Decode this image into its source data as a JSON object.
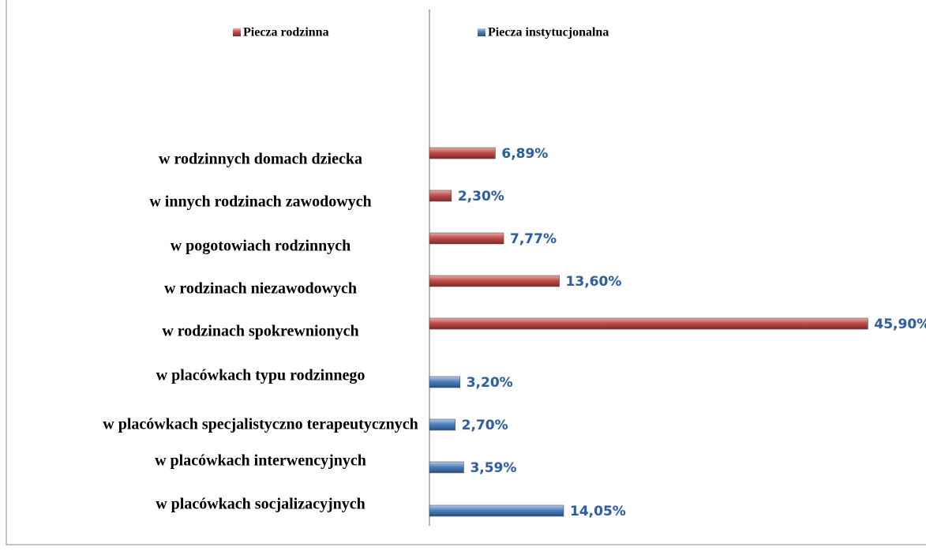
{
  "chart_data": {
    "type": "bar",
    "orientation": "horizontal",
    "categories": [
      "w rodzinnych domach dziecka",
      "w innych rodzinach zawodowych",
      "w pogotowiach rodzinnych",
      "w rodzinach niezawodowych",
      "w rodzinach spokrewnionych",
      "w placówkach typu rodzinnego",
      "w placówkach specjalistyczno terapeutycznych",
      "w placówkach interwencyjnych",
      "w placówkach socjalizacyjnych"
    ],
    "series": [
      {
        "name": "Piecza rodzinna",
        "color": "#c0504d",
        "values": [
          6.89,
          2.3,
          7.77,
          13.6,
          45.9,
          null,
          null,
          null,
          null
        ],
        "value_labels": [
          "6,89%",
          "2,30%",
          "7,77%",
          "13,60%",
          "45,90%",
          null,
          null,
          null,
          null
        ]
      },
      {
        "name": "Piecza instytucjonalna",
        "color": "#4f81bd",
        "values": [
          null,
          null,
          null,
          null,
          null,
          3.2,
          2.7,
          3.59,
          14.05
        ],
        "value_labels": [
          null,
          null,
          null,
          null,
          null,
          "3,20%",
          "2,70%",
          "3,59%",
          "14,05%"
        ]
      }
    ],
    "xlim": [
      0,
      50
    ]
  }
}
